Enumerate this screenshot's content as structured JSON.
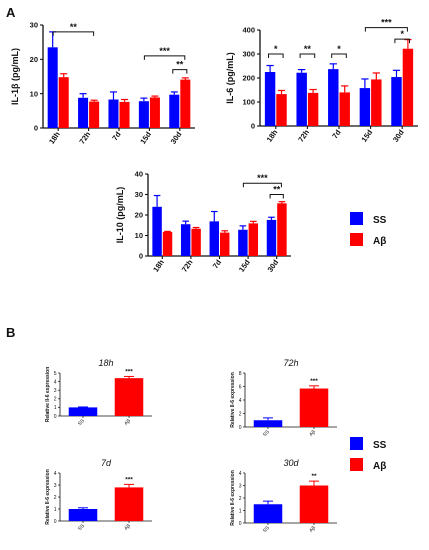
{
  "panels": {
    "a": "A",
    "b": "B"
  },
  "colors": {
    "ss": "#0000ff",
    "abeta": "#ff0000",
    "axis": "#111111"
  },
  "legend": [
    {
      "label": "SS",
      "color": "#0000ff"
    },
    {
      "label": "Aβ",
      "color": "#ff0000"
    }
  ],
  "chart_data": [
    {
      "id": "il1b",
      "type": "bar",
      "panel": "A",
      "ylabel": "IL-1β (pg/mL)",
      "categories": [
        "18h",
        "72h",
        "7d",
        "15d",
        "30d"
      ],
      "ylim": [
        0,
        30
      ],
      "yticks": [
        "0",
        "10",
        "20",
        "30"
      ],
      "series": [
        {
          "name": "SS",
          "values": [
            23.5,
            8.8,
            8.3,
            7.8,
            9.7
          ],
          "errors": [
            4.5,
            1.2,
            2.2,
            0.9,
            0.8
          ]
        },
        {
          "name": "Aβ",
          "values": [
            14.8,
            7.7,
            7.6,
            8.9,
            14.1
          ],
          "errors": [
            1.0,
            0.4,
            0.7,
            0.4,
            0.5
          ]
        }
      ],
      "significance": [
        {
          "label": "**",
          "from": 0,
          "to": 1,
          "y": 28
        },
        {
          "label": "***",
          "from": 3,
          "to": 4,
          "y": 21
        },
        {
          "label": "**",
          "from": 4,
          "to": 4,
          "y": 17
        }
      ]
    },
    {
      "id": "il6",
      "type": "bar",
      "panel": "A",
      "ylabel": "IL-6 (pg/mL)",
      "categories": [
        "18h",
        "72h",
        "7d",
        "15d",
        "30d"
      ],
      "ylim": [
        0,
        400
      ],
      "yticks": [
        "0",
        "100",
        "200",
        "300",
        "400"
      ],
      "series": [
        {
          "name": "SS",
          "values": [
            225,
            222,
            237,
            158,
            204
          ],
          "errors": [
            27,
            13,
            22,
            38,
            28
          ]
        },
        {
          "name": "Aβ",
          "values": [
            133,
            138,
            140,
            194,
            322
          ],
          "errors": [
            15,
            14,
            27,
            27,
            38
          ]
        }
      ],
      "significance": [
        {
          "label": "*",
          "from": 0,
          "to": 0,
          "y": 300
        },
        {
          "label": "**",
          "from": 1,
          "to": 1,
          "y": 300
        },
        {
          "label": "*",
          "from": 2,
          "to": 2,
          "y": 300
        },
        {
          "label": "***",
          "from": 3,
          "to": 4,
          "y": 410
        },
        {
          "label": "*",
          "from": 4,
          "to": 4,
          "y": 362
        }
      ]
    },
    {
      "id": "il10",
      "type": "bar",
      "panel": "A",
      "ylabel": "IL-10 (pg/mL)",
      "categories": [
        "18h",
        "72h",
        "7d",
        "15d",
        "30d"
      ],
      "ylim": [
        0,
        40
      ],
      "yticks": [
        "0",
        "10",
        "20",
        "30",
        "40"
      ],
      "series": [
        {
          "name": "SS",
          "values": [
            24.0,
            15.5,
            16.9,
            12.8,
            17.6
          ],
          "errors": [
            5.5,
            1.5,
            4.8,
            1.9,
            1.3
          ]
        },
        {
          "name": "Aβ",
          "values": [
            11.7,
            13.3,
            11.4,
            15.9,
            25.7
          ],
          "errors": [
            0.3,
            0.6,
            0.9,
            1.0,
            0.8
          ]
        }
      ],
      "significance": [
        {
          "label": "***",
          "from": 3,
          "to": 4,
          "y": 35.5
        },
        {
          "label": "**",
          "from": 4,
          "to": 4,
          "y": 30
        }
      ]
    },
    {
      "id": "b18h",
      "type": "bar",
      "panel": "B",
      "title": "18h",
      "ylabel": "Relative Il-6 expression",
      "categories": [
        "SS",
        "Aβ"
      ],
      "colors": [
        "#0000ff",
        "#ff0000"
      ],
      "ylim": [
        0,
        5
      ],
      "yticks": [
        "0",
        "1",
        "2",
        "3",
        "4",
        "5"
      ],
      "values": [
        1.0,
        4.4
      ],
      "errors": [
        0.05,
        0.2
      ],
      "significance": [
        {
          "label": "***",
          "bar": 1
        }
      ]
    },
    {
      "id": "b72h",
      "type": "bar",
      "panel": "B",
      "title": "72h",
      "ylabel": "Relative Il-6 expression",
      "categories": [
        "SS",
        "Aβ"
      ],
      "colors": [
        "#0000ff",
        "#ff0000"
      ],
      "ylim": [
        0,
        8
      ],
      "yticks": [
        "0",
        "2",
        "4",
        "6",
        "8"
      ],
      "values": [
        1.0,
        5.7
      ],
      "errors": [
        0.35,
        0.4
      ],
      "significance": [
        {
          "label": "***",
          "bar": 1
        }
      ]
    },
    {
      "id": "b7d",
      "type": "bar",
      "panel": "B",
      "title": "7d",
      "ylabel": "Relative Il-6 expression",
      "categories": [
        "SS",
        "Aβ"
      ],
      "colors": [
        "#0000ff",
        "#ff0000"
      ],
      "ylim": [
        0,
        4
      ],
      "yticks": [
        "0",
        "1",
        "2",
        "3",
        "4"
      ],
      "values": [
        1.0,
        2.8
      ],
      "errors": [
        0.1,
        0.25
      ],
      "significance": [
        {
          "label": "***",
          "bar": 1
        }
      ]
    },
    {
      "id": "b30d",
      "type": "bar",
      "panel": "B",
      "title": "30d",
      "ylabel": "Relative Il-6 expression",
      "categories": [
        "SS",
        "Aβ"
      ],
      "colors": [
        "#0000ff",
        "#ff0000"
      ],
      "ylim": [
        0,
        4
      ],
      "yticks": [
        "0",
        "1",
        "2",
        "3",
        "4"
      ],
      "values": [
        1.5,
        3.0
      ],
      "errors": [
        0.25,
        0.35
      ],
      "significance": [
        {
          "label": "**",
          "bar": 1
        }
      ]
    }
  ]
}
